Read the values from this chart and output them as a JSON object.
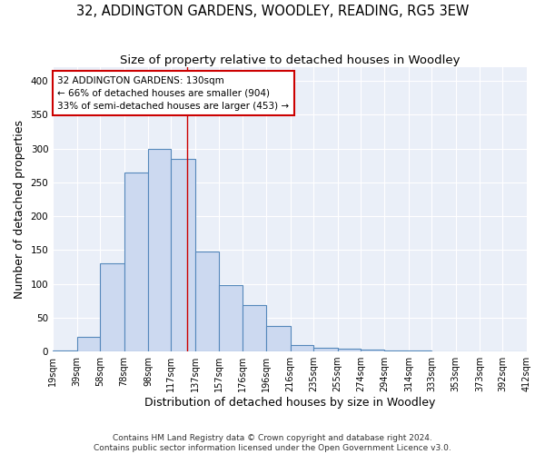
{
  "title1": "32, ADDINGTON GARDENS, WOODLEY, READING, RG5 3EW",
  "title2": "Size of property relative to detached houses in Woodley",
  "xlabel": "Distribution of detached houses by size in Woodley",
  "ylabel": "Number of detached properties",
  "footnote1": "Contains HM Land Registry data © Crown copyright and database right 2024.",
  "footnote2": "Contains public sector information licensed under the Open Government Licence v3.0.",
  "bin_edges": [
    19,
    39,
    58,
    78,
    98,
    117,
    137,
    157,
    176,
    196,
    216,
    235,
    255,
    274,
    294,
    314,
    333,
    353,
    373,
    392,
    412
  ],
  "bin_labels": [
    "19sqm",
    "39sqm",
    "58sqm",
    "78sqm",
    "98sqm",
    "117sqm",
    "137sqm",
    "157sqm",
    "176sqm",
    "196sqm",
    "216sqm",
    "235sqm",
    "255sqm",
    "274sqm",
    "294sqm",
    "314sqm",
    "333sqm",
    "353sqm",
    "373sqm",
    "392sqm",
    "412sqm"
  ],
  "bar_heights": [
    2,
    22,
    130,
    265,
    300,
    285,
    148,
    98,
    68,
    38,
    9,
    5,
    4,
    3,
    2,
    1,
    0,
    0,
    0,
    0
  ],
  "bar_color": "#ccd9f0",
  "bar_edge_color": "#5588bb",
  "property_size": 130,
  "red_line_color": "#cc0000",
  "annotation_line1": "32 ADDINGTON GARDENS: 130sqm",
  "annotation_line2": "← 66% of detached houses are smaller (904)",
  "annotation_line3": "33% of semi-detached houses are larger (453) →",
  "annotation_box_color": "#ffffff",
  "annotation_box_edge": "#cc0000",
  "ylim": [
    0,
    420
  ],
  "bg_color": "#eaeff8",
  "grid_color": "#ffffff",
  "title1_fontsize": 10.5,
  "title2_fontsize": 9.5,
  "axis_label_fontsize": 9,
  "tick_fontsize": 7,
  "annotation_fontsize": 7.5,
  "footnote_fontsize": 6.5
}
